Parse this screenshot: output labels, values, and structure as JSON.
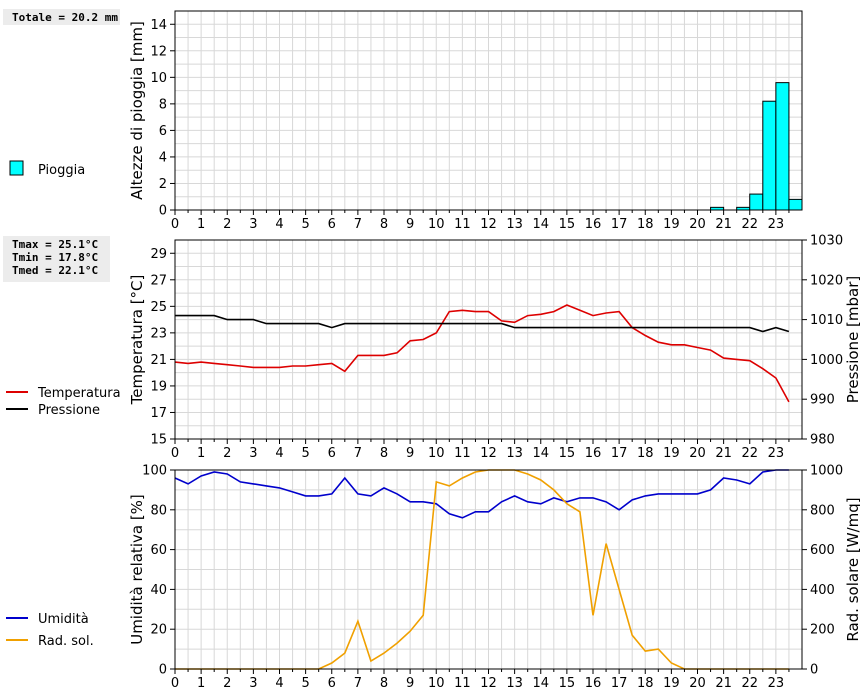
{
  "chart_data": [
    {
      "type": "bar",
      "summary": [
        "Totale = 20.2 mm"
      ],
      "ylabel": "Altezze di pioggia [mm]",
      "ylim": [
        0,
        15
      ],
      "yticks": [
        0,
        2,
        4,
        6,
        8,
        10,
        12,
        14
      ],
      "xlim": [
        0,
        24
      ],
      "xticks": [
        0,
        1,
        2,
        3,
        4,
        5,
        6,
        7,
        8,
        9,
        10,
        11,
        12,
        13,
        14,
        15,
        16,
        17,
        18,
        19,
        20,
        21,
        22,
        23
      ],
      "grid": true,
      "legend_position": "left",
      "series": [
        {
          "name": "Pioggia",
          "color": "#00ffff",
          "bin_width": 0.5,
          "points": [
            [
              20.5,
              0.2
            ],
            [
              21.5,
              0.2
            ],
            [
              22.0,
              1.2
            ],
            [
              22.5,
              8.2
            ],
            [
              23.0,
              9.6
            ],
            [
              23.5,
              0.8
            ]
          ]
        }
      ]
    },
    {
      "type": "line",
      "summary": [
        "Tmax = 25.1°C",
        "Tmin = 17.8°C",
        "Tmed = 22.1°C"
      ],
      "ylabel": "Temperatura [°C]",
      "ylim": [
        15,
        30
      ],
      "yticks": [
        15,
        17,
        19,
        21,
        23,
        25,
        27,
        29
      ],
      "y2label": "Pressione [mbar]",
      "y2lim": [
        980,
        1030
      ],
      "y2ticks": [
        980,
        990,
        1000,
        1010,
        1020,
        1030
      ],
      "xlim": [
        0,
        24
      ],
      "xticks": [
        0,
        1,
        2,
        3,
        4,
        5,
        6,
        7,
        8,
        9,
        10,
        11,
        12,
        13,
        14,
        15,
        16,
        17,
        18,
        19,
        20,
        21,
        22,
        23
      ],
      "grid": true,
      "legend_position": "left",
      "series": [
        {
          "name": "Temperatura",
          "axis": "left",
          "color": "#dd0000",
          "points": [
            [
              0,
              20.8
            ],
            [
              0.5,
              20.7
            ],
            [
              1,
              20.8
            ],
            [
              1.5,
              20.7
            ],
            [
              2,
              20.6
            ],
            [
              2.5,
              20.5
            ],
            [
              3,
              20.4
            ],
            [
              3.5,
              20.4
            ],
            [
              4,
              20.4
            ],
            [
              4.5,
              20.5
            ],
            [
              5,
              20.5
            ],
            [
              5.5,
              20.6
            ],
            [
              6,
              20.7
            ],
            [
              6.5,
              20.1
            ],
            [
              7,
              21.3
            ],
            [
              7.5,
              21.3
            ],
            [
              8,
              21.3
            ],
            [
              8.5,
              21.5
            ],
            [
              9,
              22.4
            ],
            [
              9.5,
              22.5
            ],
            [
              10,
              23.0
            ],
            [
              10.5,
              24.6
            ],
            [
              11,
              24.7
            ],
            [
              11.5,
              24.6
            ],
            [
              12,
              24.6
            ],
            [
              12.5,
              23.9
            ],
            [
              13,
              23.8
            ],
            [
              13.5,
              24.3
            ],
            [
              14,
              24.4
            ],
            [
              14.5,
              24.6
            ],
            [
              15,
              25.1
            ],
            [
              15.5,
              24.7
            ],
            [
              16,
              24.3
            ],
            [
              16.5,
              24.5
            ],
            [
              17,
              24.6
            ],
            [
              17.5,
              23.4
            ],
            [
              18,
              22.8
            ],
            [
              18.5,
              22.3
            ],
            [
              19,
              22.1
            ],
            [
              19.5,
              22.1
            ],
            [
              20,
              21.9
            ],
            [
              20.5,
              21.7
            ],
            [
              21,
              21.1
            ],
            [
              21.5,
              21.0
            ],
            [
              22,
              20.9
            ],
            [
              22.5,
              20.3
            ],
            [
              23,
              19.6
            ],
            [
              23.5,
              17.8
            ]
          ]
        },
        {
          "name": "Pressione",
          "axis": "right",
          "color": "#000000",
          "points": [
            [
              0,
              1011
            ],
            [
              1.5,
              1011
            ],
            [
              2,
              1010
            ],
            [
              3,
              1010
            ],
            [
              3.5,
              1009
            ],
            [
              5.5,
              1009
            ],
            [
              6,
              1008
            ],
            [
              6.5,
              1009
            ],
            [
              12.5,
              1009
            ],
            [
              13,
              1008
            ],
            [
              22,
              1008
            ],
            [
              22.5,
              1007
            ],
            [
              23,
              1008
            ],
            [
              23.5,
              1007
            ]
          ]
        }
      ]
    },
    {
      "type": "line",
      "summary": [],
      "ylabel": "Umidità relativa [%]",
      "ylim": [
        0,
        100
      ],
      "yticks": [
        0,
        20,
        40,
        60,
        80,
        100
      ],
      "y2label": "Rad. solare [W/mq]",
      "y2lim": [
        0,
        1000
      ],
      "y2ticks": [
        0,
        200,
        400,
        600,
        800,
        1000
      ],
      "xlim": [
        0,
        24
      ],
      "xticks": [
        0,
        1,
        2,
        3,
        4,
        5,
        6,
        7,
        8,
        9,
        10,
        11,
        12,
        13,
        14,
        15,
        16,
        17,
        18,
        19,
        20,
        21,
        22,
        23
      ],
      "grid": true,
      "legend_position": "left",
      "series": [
        {
          "name": "Umidità",
          "axis": "left",
          "color": "#0000cc",
          "points": [
            [
              0,
              96
            ],
            [
              0.5,
              93
            ],
            [
              1,
              97
            ],
            [
              1.5,
              99
            ],
            [
              2,
              98
            ],
            [
              2.5,
              94
            ],
            [
              3,
              93
            ],
            [
              3.5,
              92
            ],
            [
              4,
              91
            ],
            [
              4.5,
              89
            ],
            [
              5,
              87
            ],
            [
              5.5,
              87
            ],
            [
              6,
              88
            ],
            [
              6.5,
              96
            ],
            [
              7,
              88
            ],
            [
              7.5,
              87
            ],
            [
              8,
              91
            ],
            [
              8.5,
              88
            ],
            [
              9,
              84
            ],
            [
              9.5,
              84
            ],
            [
              10,
              83
            ],
            [
              10.5,
              78
            ],
            [
              11,
              76
            ],
            [
              11.5,
              79
            ],
            [
              12,
              79
            ],
            [
              12.5,
              84
            ],
            [
              13,
              87
            ],
            [
              13.5,
              84
            ],
            [
              14,
              83
            ],
            [
              14.5,
              86
            ],
            [
              15,
              84
            ],
            [
              15.5,
              86
            ],
            [
              16,
              86
            ],
            [
              16.5,
              84
            ],
            [
              17,
              80
            ],
            [
              17.5,
              85
            ],
            [
              18,
              87
            ],
            [
              18.5,
              88
            ],
            [
              19,
              88
            ],
            [
              19.5,
              88
            ],
            [
              20,
              88
            ],
            [
              20.5,
              90
            ],
            [
              21,
              96
            ],
            [
              21.5,
              95
            ],
            [
              22,
              93
            ],
            [
              22.5,
              99
            ],
            [
              23,
              100
            ],
            [
              23.5,
              100
            ]
          ]
        },
        {
          "name": "Rad. sol.",
          "axis": "right",
          "color": "#f0a000",
          "points": [
            [
              0,
              0
            ],
            [
              0.5,
              0
            ],
            [
              1,
              0
            ],
            [
              1.5,
              0
            ],
            [
              2,
              0
            ],
            [
              2.5,
              0
            ],
            [
              3,
              0
            ],
            [
              3.5,
              0
            ],
            [
              4,
              0
            ],
            [
              4.5,
              0
            ],
            [
              5,
              0
            ],
            [
              5.5,
              0
            ],
            [
              6,
              30
            ],
            [
              6.5,
              80
            ],
            [
              7,
              240
            ],
            [
              7.5,
              40
            ],
            [
              8,
              80
            ],
            [
              8.5,
              130
            ],
            [
              9,
              190
            ],
            [
              9.5,
              270
            ],
            [
              10,
              940
            ],
            [
              10.5,
              920
            ],
            [
              11,
              960
            ],
            [
              11.5,
              990
            ],
            [
              12,
              1000
            ],
            [
              12.5,
              1000
            ],
            [
              13,
              1000
            ],
            [
              13.5,
              980
            ],
            [
              14,
              950
            ],
            [
              14.5,
              900
            ],
            [
              15,
              830
            ],
            [
              15.5,
              790
            ],
            [
              16,
              270
            ],
            [
              16.5,
              630
            ],
            [
              17,
              400
            ],
            [
              17.5,
              170
            ],
            [
              18,
              90
            ],
            [
              18.5,
              100
            ],
            [
              19,
              30
            ],
            [
              19.5,
              0
            ],
            [
              20,
              0
            ],
            [
              20.5,
              0
            ],
            [
              21,
              0
            ],
            [
              21.5,
              0
            ],
            [
              22,
              0
            ],
            [
              22.5,
              0
            ],
            [
              23,
              0
            ],
            [
              23.5,
              0
            ]
          ]
        }
      ]
    }
  ]
}
